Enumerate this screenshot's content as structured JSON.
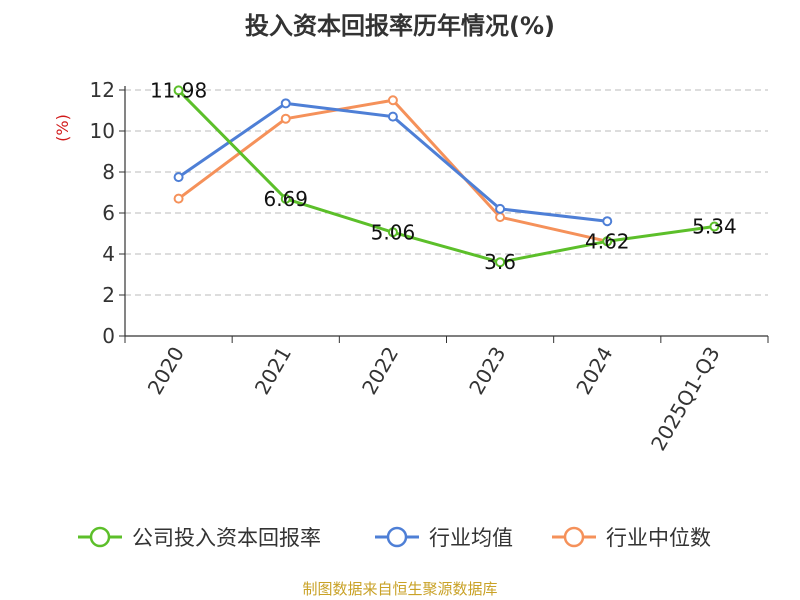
{
  "title": "投入资本回报率历年情况(%)",
  "source": "制图数据来自恒生聚源数据库",
  "chart_data": {
    "type": "line",
    "title": "投入资本回报率历年情况(%)",
    "ylabel": "(%)",
    "xlabel": "",
    "categories": [
      "2020",
      "2021",
      "2022",
      "2023",
      "2024",
      "2025Q1-Q3"
    ],
    "ylim": [
      0,
      12
    ],
    "yticks": [
      0,
      2,
      4,
      6,
      8,
      10,
      12
    ],
    "grid": true,
    "legend_position": "bottom",
    "series": [
      {
        "name": "公司投入资本回报率",
        "color": "#5cbf2a",
        "values": [
          11.98,
          6.69,
          5.06,
          3.6,
          4.62,
          5.34
        ],
        "labels": [
          "11.98",
          "6.69",
          "5.06",
          "3.6",
          "4.62",
          "5.34"
        ]
      },
      {
        "name": "行业均值",
        "color": "#4e7fd6",
        "values": [
          7.75,
          11.35,
          10.7,
          6.2,
          5.6,
          null
        ]
      },
      {
        "name": "行业中位数",
        "color": "#f5915a",
        "values": [
          6.7,
          10.6,
          11.5,
          5.8,
          4.62,
          null
        ]
      }
    ]
  }
}
